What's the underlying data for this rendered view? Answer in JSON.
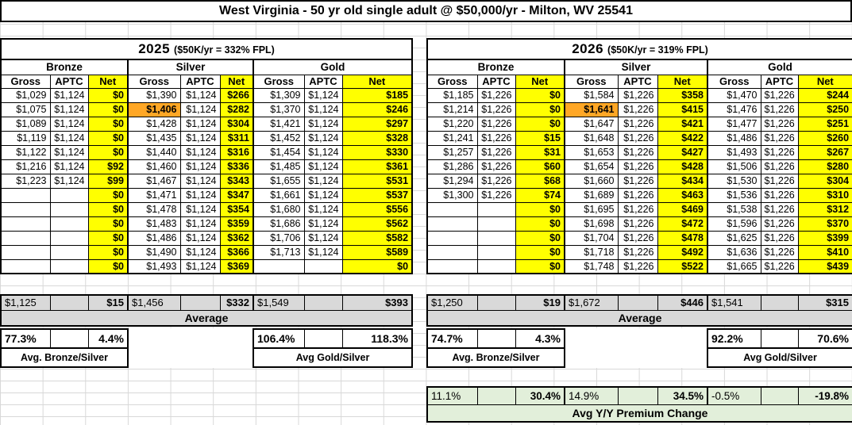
{
  "title": "West Virginia - 50 yr old single adult @ $50,000/yr - Milton, WV 25541",
  "tier_headers": [
    "Bronze",
    "Silver",
    "Gold"
  ],
  "col_headers": [
    "Gross",
    "APTC",
    "Net"
  ],
  "colors": {
    "net_column_bg": "#FFFF00",
    "highlight_bg": "#FFA726",
    "average_bg": "#D9D9D9",
    "yoy_bg": "#E2EFDA"
  },
  "tables": {
    "y2025": {
      "year": "2025",
      "note": "($50K/yr = 332% FPL)",
      "rows": [
        [
          [
            "$1,029",
            "$1,124",
            "$0"
          ],
          [
            "$1,390",
            "$1,124",
            "$266"
          ],
          [
            "$1,309",
            "$1,124",
            "$185"
          ]
        ],
        [
          [
            "$1,075",
            "$1,124",
            "$0"
          ],
          [
            "$1,406",
            "$1,124",
            "$282"
          ],
          [
            "$1,370",
            "$1,124",
            "$246"
          ]
        ],
        [
          [
            "$1,089",
            "$1,124",
            "$0"
          ],
          [
            "$1,428",
            "$1,124",
            "$304"
          ],
          [
            "$1,421",
            "$1,124",
            "$297"
          ]
        ],
        [
          [
            "$1,119",
            "$1,124",
            "$0"
          ],
          [
            "$1,435",
            "$1,124",
            "$311"
          ],
          [
            "$1,452",
            "$1,124",
            "$328"
          ]
        ],
        [
          [
            "$1,122",
            "$1,124",
            "$0"
          ],
          [
            "$1,440",
            "$1,124",
            "$316"
          ],
          [
            "$1,454",
            "$1,124",
            "$330"
          ]
        ],
        [
          [
            "$1,216",
            "$1,124",
            "$92"
          ],
          [
            "$1,460",
            "$1,124",
            "$336"
          ],
          [
            "$1,485",
            "$1,124",
            "$361"
          ]
        ],
        [
          [
            "$1,223",
            "$1,124",
            "$99"
          ],
          [
            "$1,467",
            "$1,124",
            "$343"
          ],
          [
            "$1,655",
            "$1,124",
            "$531"
          ]
        ],
        [
          [
            "",
            "",
            "$0"
          ],
          [
            "$1,471",
            "$1,124",
            "$347"
          ],
          [
            "$1,661",
            "$1,124",
            "$537"
          ]
        ],
        [
          [
            "",
            "",
            "$0"
          ],
          [
            "$1,478",
            "$1,124",
            "$354"
          ],
          [
            "$1,680",
            "$1,124",
            "$556"
          ]
        ],
        [
          [
            "",
            "",
            "$0"
          ],
          [
            "$1,483",
            "$1,124",
            "$359"
          ],
          [
            "$1,686",
            "$1,124",
            "$562"
          ]
        ],
        [
          [
            "",
            "",
            "$0"
          ],
          [
            "$1,486",
            "$1,124",
            "$362"
          ],
          [
            "$1,706",
            "$1,124",
            "$582"
          ]
        ],
        [
          [
            "",
            "",
            "$0"
          ],
          [
            "$1,490",
            "$1,124",
            "$366"
          ],
          [
            "$1,713",
            "$1,124",
            "$589"
          ]
        ],
        [
          [
            "",
            "",
            "$0"
          ],
          [
            "$1,493",
            "$1,124",
            "$369"
          ],
          [
            "",
            "",
            "$0"
          ]
        ]
      ],
      "highlight": {
        "row": 1,
        "tier": 1,
        "col": 0
      },
      "avg": [
        "$1,125",
        "",
        "$15",
        "$1,456",
        "",
        "$332",
        "$1,549",
        "",
        "$393"
      ],
      "avg_label": "Average",
      "pct": [
        "77.3%",
        "",
        "4.4%",
        "106.4%",
        "",
        "118.3%"
      ],
      "label_bronze_silver": "Avg. Bronze/Silver",
      "label_gold_silver": "Avg Gold/Silver"
    },
    "y2026": {
      "year": "2026",
      "note": "($50K/yr = 319% FPL)",
      "rows": [
        [
          [
            "$1,185",
            "$1,226",
            "$0"
          ],
          [
            "$1,584",
            "$1,226",
            "$358"
          ],
          [
            "$1,470",
            "$1,226",
            "$244"
          ]
        ],
        [
          [
            "$1,214",
            "$1,226",
            "$0"
          ],
          [
            "$1,641",
            "$1,226",
            "$415"
          ],
          [
            "$1,476",
            "$1,226",
            "$250"
          ]
        ],
        [
          [
            "$1,220",
            "$1,226",
            "$0"
          ],
          [
            "$1,647",
            "$1,226",
            "$421"
          ],
          [
            "$1,477",
            "$1,226",
            "$251"
          ]
        ],
        [
          [
            "$1,241",
            "$1,226",
            "$15"
          ],
          [
            "$1,648",
            "$1,226",
            "$422"
          ],
          [
            "$1,486",
            "$1,226",
            "$260"
          ]
        ],
        [
          [
            "$1,257",
            "$1,226",
            "$31"
          ],
          [
            "$1,653",
            "$1,226",
            "$427"
          ],
          [
            "$1,493",
            "$1,226",
            "$267"
          ]
        ],
        [
          [
            "$1,286",
            "$1,226",
            "$60"
          ],
          [
            "$1,654",
            "$1,226",
            "$428"
          ],
          [
            "$1,506",
            "$1,226",
            "$280"
          ]
        ],
        [
          [
            "$1,294",
            "$1,226",
            "$68"
          ],
          [
            "$1,660",
            "$1,226",
            "$434"
          ],
          [
            "$1,530",
            "$1,226",
            "$304"
          ]
        ],
        [
          [
            "$1,300",
            "$1,226",
            "$74"
          ],
          [
            "$1,689",
            "$1,226",
            "$463"
          ],
          [
            "$1,536",
            "$1,226",
            "$310"
          ]
        ],
        [
          [
            "",
            "",
            "$0"
          ],
          [
            "$1,695",
            "$1,226",
            "$469"
          ],
          [
            "$1,538",
            "$1,226",
            "$312"
          ]
        ],
        [
          [
            "",
            "",
            "$0"
          ],
          [
            "$1,698",
            "$1,226",
            "$472"
          ],
          [
            "$1,596",
            "$1,226",
            "$370"
          ]
        ],
        [
          [
            "",
            "",
            "$0"
          ],
          [
            "$1,704",
            "$1,226",
            "$478"
          ],
          [
            "$1,625",
            "$1,226",
            "$399"
          ]
        ],
        [
          [
            "",
            "",
            "$0"
          ],
          [
            "$1,718",
            "$1,226",
            "$492"
          ],
          [
            "$1,636",
            "$1,226",
            "$410"
          ]
        ],
        [
          [
            "",
            "",
            "$0"
          ],
          [
            "$1,748",
            "$1,226",
            "$522"
          ],
          [
            "$1,665",
            "$1,226",
            "$439"
          ]
        ]
      ],
      "highlight": {
        "row": 1,
        "tier": 1,
        "col": 0
      },
      "avg": [
        "$1,250",
        "",
        "$19",
        "$1,672",
        "",
        "$446",
        "$1,541",
        "",
        "$315"
      ],
      "avg_label": "Average",
      "pct": [
        "74.7%",
        "",
        "4.3%",
        "92.2%",
        "",
        "70.6%"
      ],
      "label_bronze_silver": "Avg. Bronze/Silver",
      "label_gold_silver": "Avg Gold/Silver",
      "yoy": [
        "11.1%",
        "",
        "30.4%",
        "14.9%",
        "",
        "34.5%",
        "-0.5%",
        "",
        "-19.8%"
      ],
      "yoy_label": "Avg Y/Y Premium Change"
    }
  }
}
